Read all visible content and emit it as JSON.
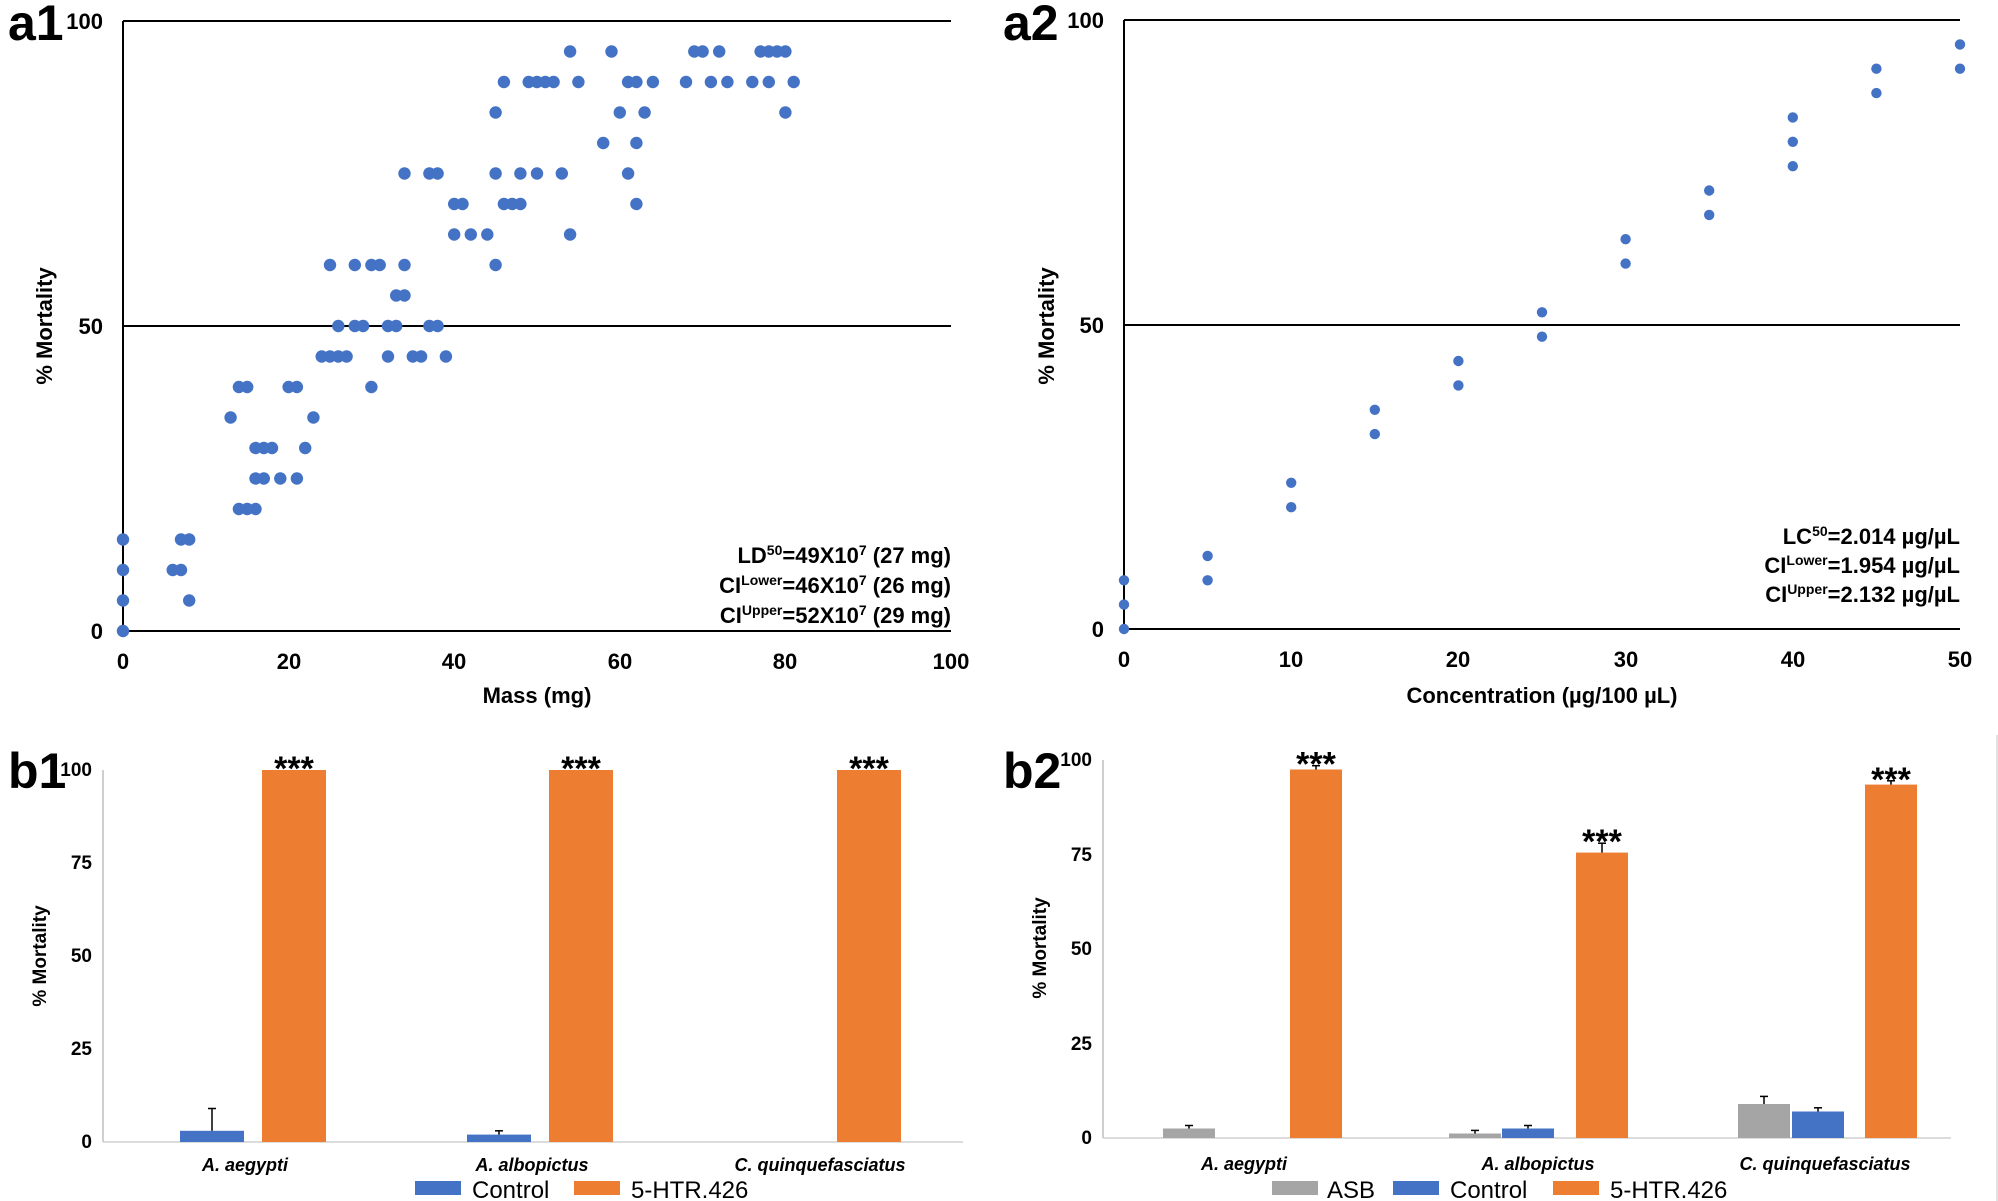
{
  "colors": {
    "blue": "#4472C4",
    "orange": "#ED7D31",
    "gray": "#A5A5A5",
    "axis": "#000000",
    "background": "#FFFFFF"
  },
  "chart_data": [
    {
      "id": "a1",
      "panel_label": "a1",
      "type": "scatter",
      "xlabel": "Mass (mg)",
      "ylabel": "% Mortality",
      "xlim": [
        0,
        100
      ],
      "ylim": [
        0,
        100
      ],
      "xticks": [
        "0",
        "20",
        "40",
        "60",
        "80",
        "100"
      ],
      "yticks": [
        "0",
        "50",
        "100"
      ],
      "reference_line_y": 50,
      "points": [
        [
          0,
          0
        ],
        [
          0,
          5
        ],
        [
          0,
          10
        ],
        [
          0,
          15
        ],
        [
          6,
          10
        ],
        [
          7,
          10
        ],
        [
          7,
          15
        ],
        [
          8,
          15
        ],
        [
          8,
          5
        ],
        [
          13,
          35
        ],
        [
          14,
          40
        ],
        [
          15,
          40
        ],
        [
          14,
          20
        ],
        [
          15,
          20
        ],
        [
          16,
          20
        ],
        [
          16,
          25
        ],
        [
          17,
          25
        ],
        [
          16,
          30
        ],
        [
          17,
          30
        ],
        [
          18,
          30
        ],
        [
          19,
          25
        ],
        [
          20,
          40
        ],
        [
          21,
          40
        ],
        [
          21,
          25
        ],
        [
          22,
          30
        ],
        [
          23,
          35
        ],
        [
          24,
          45
        ],
        [
          25,
          45
        ],
        [
          25,
          60
        ],
        [
          26,
          45
        ],
        [
          27,
          45
        ],
        [
          26,
          50
        ],
        [
          28,
          50
        ],
        [
          29,
          50
        ],
        [
          28,
          60
        ],
        [
          30,
          60
        ],
        [
          31,
          60
        ],
        [
          30,
          40
        ],
        [
          32,
          45
        ],
        [
          32,
          50
        ],
        [
          33,
          50
        ],
        [
          33,
          55
        ],
        [
          34,
          55
        ],
        [
          34,
          60
        ],
        [
          35,
          45
        ],
        [
          36,
          45
        ],
        [
          37,
          50
        ],
        [
          34,
          75
        ],
        [
          37,
          75
        ],
        [
          38,
          75
        ],
        [
          38,
          50
        ],
        [
          39,
          45
        ],
        [
          40,
          70
        ],
        [
          41,
          70
        ],
        [
          40,
          65
        ],
        [
          42,
          65
        ],
        [
          44,
          65
        ],
        [
          45,
          60
        ],
        [
          45,
          75
        ],
        [
          45,
          85
        ],
        [
          46,
          90
        ],
        [
          46,
          70
        ],
        [
          47,
          70
        ],
        [
          48,
          70
        ],
        [
          48,
          75
        ],
        [
          50,
          75
        ],
        [
          49,
          90
        ],
        [
          50,
          90
        ],
        [
          51,
          90
        ],
        [
          52,
          90
        ],
        [
          53,
          75
        ],
        [
          54,
          65
        ],
        [
          54,
          95
        ],
        [
          55,
          90
        ],
        [
          58,
          80
        ],
        [
          59,
          95
        ],
        [
          60,
          85
        ],
        [
          61,
          90
        ],
        [
          62,
          90
        ],
        [
          61,
          75
        ],
        [
          62,
          70
        ],
        [
          62,
          80
        ],
        [
          63,
          85
        ],
        [
          64,
          90
        ],
        [
          68,
          90
        ],
        [
          69,
          95
        ],
        [
          70,
          95
        ],
        [
          71,
          90
        ],
        [
          72,
          95
        ],
        [
          73,
          90
        ],
        [
          76,
          90
        ],
        [
          77,
          95
        ],
        [
          78,
          90
        ],
        [
          78,
          95
        ],
        [
          79,
          95
        ],
        [
          80,
          95
        ],
        [
          80,
          85
        ],
        [
          81,
          90
        ]
      ],
      "annotations": [
        {
          "main": "LD",
          "sup": "50",
          "rest": "=49X10",
          "sup2": "7",
          "tail": " (27 mg)"
        },
        {
          "main": "CI",
          "sup": "Lower",
          "rest": "=46X10",
          "sup2": "7",
          "tail": " (26 mg)"
        },
        {
          "main": "CI",
          "sup": "Upper",
          "rest": "=52X10",
          "sup2": "7",
          "tail": " (29 mg)"
        }
      ]
    },
    {
      "id": "a2",
      "panel_label": "a2",
      "type": "scatter",
      "xlabel": "Concentration (µg/100 µL)",
      "ylabel": "% Mortality",
      "xlim": [
        0,
        50
      ],
      "ylim": [
        0,
        100
      ],
      "xticks": [
        "0",
        "10",
        "20",
        "30",
        "40",
        "50"
      ],
      "yticks": [
        "0",
        "50",
        "100"
      ],
      "reference_line_y": 50,
      "points": [
        [
          0,
          0
        ],
        [
          0,
          4
        ],
        [
          0,
          8
        ],
        [
          5,
          8
        ],
        [
          5,
          12
        ],
        [
          10,
          20
        ],
        [
          10,
          24
        ],
        [
          15,
          32
        ],
        [
          15,
          36
        ],
        [
          20,
          40
        ],
        [
          20,
          44
        ],
        [
          25,
          48
        ],
        [
          25,
          52
        ],
        [
          30,
          60
        ],
        [
          30,
          64
        ],
        [
          35,
          68
        ],
        [
          35,
          72
        ],
        [
          40,
          76
        ],
        [
          40,
          80
        ],
        [
          40,
          84
        ],
        [
          45,
          88
        ],
        [
          45,
          92
        ],
        [
          50,
          92
        ],
        [
          50,
          96
        ]
      ],
      "annotations": [
        {
          "main": "LC",
          "sup": "50",
          "rest": "=2.014 µg/µL"
        },
        {
          "main": "CI",
          "sup": "Lower",
          "rest": "=1.954 µg/µL"
        },
        {
          "main": "CI",
          "sup": "Upper",
          "rest": "=2.132 µg/µL"
        }
      ]
    },
    {
      "id": "b1",
      "panel_label": "b1",
      "type": "bar",
      "ylabel": "% Mortality",
      "ylim": [
        0,
        100
      ],
      "yticks": [
        "0",
        "25",
        "50",
        "75",
        "100"
      ],
      "categories": [
        "A. aegypti",
        "A. albopictus",
        "C. quinquefasciatus"
      ],
      "series": [
        {
          "name": "Control",
          "color_key": "blue",
          "values": [
            3,
            2,
            0
          ],
          "errors": [
            6,
            1,
            0
          ]
        },
        {
          "name": "5-HTR.426",
          "color_key": "orange",
          "values": [
            100,
            100,
            100
          ],
          "errors": [
            0,
            0,
            0
          ]
        }
      ],
      "significance": [
        "***",
        "***",
        "***"
      ]
    },
    {
      "id": "b2",
      "panel_label": "b2",
      "type": "bar",
      "ylabel": "% Mortality",
      "ylim": [
        0,
        100
      ],
      "yticks": [
        "0",
        "25",
        "50",
        "75",
        "100"
      ],
      "categories": [
        "A. aegypti",
        "A. albopictus",
        "C. quinquefasciatus"
      ],
      "series": [
        {
          "name": "ASB",
          "color_key": "gray",
          "values": [
            2.5,
            1.2,
            9
          ],
          "errors": [
            0.8,
            0.8,
            2
          ]
        },
        {
          "name": "Control",
          "color_key": "blue",
          "values": [
            0,
            2.5,
            7
          ],
          "errors": [
            0,
            0.8,
            1
          ]
        },
        {
          "name": "5-HTR.426",
          "color_key": "orange",
          "values": [
            97.5,
            75.5,
            93.5
          ],
          "errors": [
            1,
            2.5,
            1
          ]
        }
      ],
      "significance": [
        "***",
        "***",
        "***"
      ]
    }
  ]
}
